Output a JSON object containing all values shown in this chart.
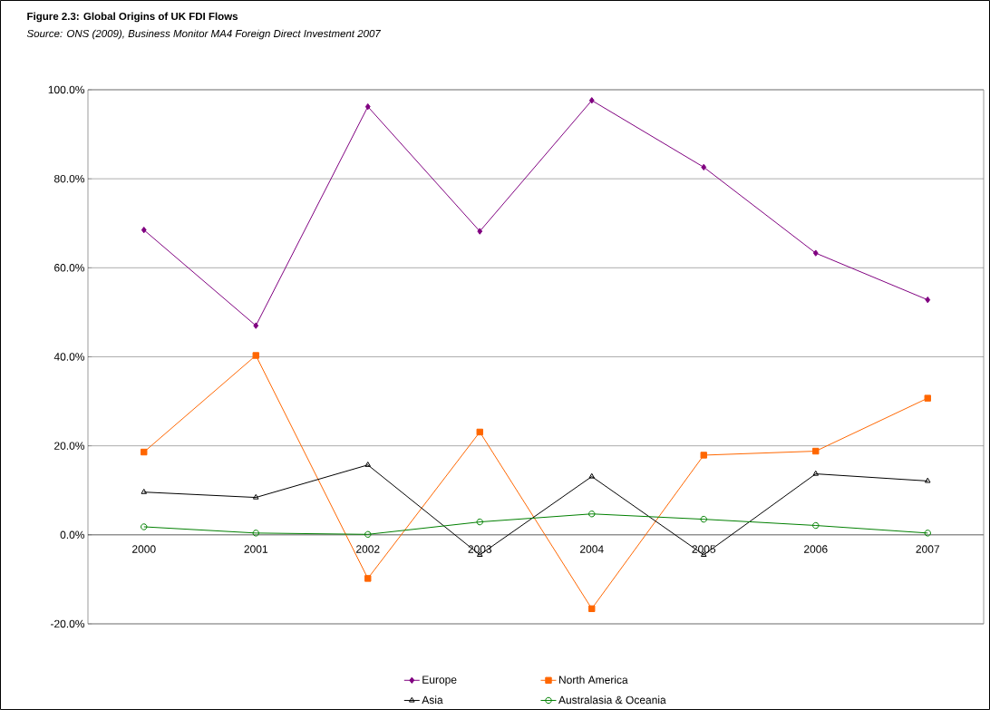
{
  "chart_data": {
    "type": "line",
    "title": "Figure 2.3: Global Origins of UK FDI Flows",
    "subtitle": "Source: ONS (2009), Business Monitor MA4 Foreign Direct Investment 2007",
    "categories": [
      "2000",
      "2001",
      "2002",
      "2003",
      "2004",
      "2005",
      "2006",
      "2007"
    ],
    "series": [
      {
        "name": "Europe",
        "color": "#800080",
        "marker": "diamond",
        "values": [
          68.5,
          47.0,
          96.2,
          68.2,
          97.6,
          82.6,
          63.3,
          52.8
        ]
      },
      {
        "name": "North America",
        "color": "#ff6600",
        "marker": "square",
        "values": [
          18.6,
          40.3,
          -9.8,
          23.1,
          -16.6,
          17.9,
          18.8,
          30.7
        ]
      },
      {
        "name": "Asia",
        "color": "#000000",
        "marker": "triangle",
        "values": [
          9.6,
          8.4,
          15.7,
          -4.5,
          13.1,
          -4.5,
          13.7,
          12.1
        ]
      },
      {
        "name": "Australasia & Oceania",
        "color": "#008000",
        "marker": "circle",
        "values": [
          1.8,
          0.4,
          0.1,
          2.9,
          4.7,
          3.5,
          2.1,
          0.4
        ]
      }
    ],
    "ylim": [
      -20,
      100
    ],
    "yticks": [
      {
        "value": -20,
        "label": "-20.0%"
      },
      {
        "value": 0,
        "label": "0.0%"
      },
      {
        "value": 20,
        "label": "20.0%"
      },
      {
        "value": 40,
        "label": "40.0%"
      },
      {
        "value": 60,
        "label": "60.0%"
      },
      {
        "value": 80,
        "label": "80.0%"
      },
      {
        "value": 100,
        "label": "100.0%"
      }
    ],
    "grid": "y",
    "legend": "bottom",
    "line_style": "solid"
  }
}
